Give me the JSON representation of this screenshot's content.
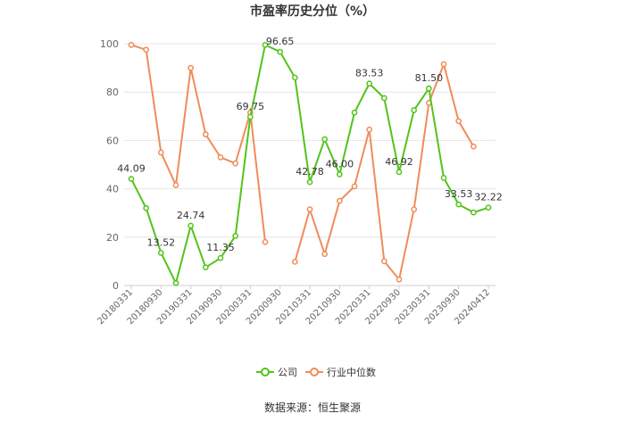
{
  "title": "市盈率历史分位（%）",
  "source": "数据来源：恒生聚源",
  "colors": {
    "company": "#52c41a",
    "industry": "#f08c5a",
    "grid": "#e6e6e6",
    "axis": "#cccccc"
  },
  "chart_data": {
    "type": "line",
    "title": "市盈率历史分位（%）",
    "ylim": [
      0,
      100
    ],
    "yticks": [
      0,
      20,
      40,
      60,
      80,
      100
    ],
    "grid": true,
    "legend_position": "bottom",
    "x": [
      "20180331",
      "20180630",
      "20180930",
      "20181231",
      "20190331",
      "20190630",
      "20190930",
      "20191231",
      "20200331",
      "20200630",
      "20200930",
      "20201231",
      "20210331",
      "20210630",
      "20210930",
      "20211231",
      "20220331",
      "20220630",
      "20220930",
      "20221231",
      "20230331",
      "20230630",
      "20230930",
      "20231231",
      "20240412"
    ],
    "xtick_labels": [
      "20180331",
      "20180930",
      "20190331",
      "20190930",
      "20200331",
      "20200930",
      "20210331",
      "20210930",
      "20220331",
      "20220930",
      "20230331",
      "20230930",
      "20240412"
    ],
    "xtick_indices": [
      0,
      2,
      4,
      6,
      8,
      10,
      12,
      14,
      16,
      18,
      20,
      22,
      24
    ],
    "series": [
      {
        "name": "公司",
        "values": [
          44.09,
          32,
          13.52,
          1,
          24.74,
          7.5,
          11.35,
          20.5,
          69.75,
          99.5,
          96.65,
          86,
          42.78,
          60.5,
          46.0,
          71.5,
          83.53,
          77.5,
          46.92,
          72.5,
          81.5,
          44.5,
          33.53,
          30.2,
          32.22
        ],
        "labels": {
          "0": "44.09",
          "2": "13.52",
          "4": "24.74",
          "6": "11.35",
          "8": "69.75",
          "10": "96.65",
          "12": "42.78",
          "14": "46.00",
          "16": "83.53",
          "18": "46.92",
          "20": "81.50",
          "22": "33.53",
          "24": "32.22"
        }
      },
      {
        "name": "行业中位数",
        "values": [
          99.5,
          97.5,
          55,
          41.5,
          90,
          62.5,
          53,
          50.5,
          71.5,
          18,
          null,
          9.8,
          31.5,
          13,
          35,
          41,
          64.5,
          10,
          2.5,
          31.5,
          75.5,
          91.5,
          68,
          57.5,
          null
        ]
      }
    ]
  }
}
